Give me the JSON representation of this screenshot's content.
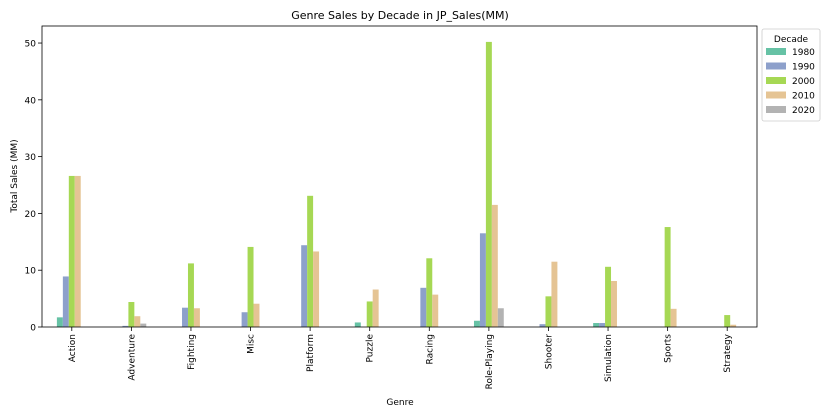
{
  "chart_data": {
    "type": "bar",
    "title": "Genre Sales by Decade in JP_Sales(MM)",
    "xlabel": "Genre",
    "ylabel": "Total Sales (MM)",
    "ylim": [
      0,
      53
    ],
    "yticks": [
      0,
      10,
      20,
      30,
      40,
      50
    ],
    "grid": false,
    "legend": {
      "title": "Decade",
      "placement": "outside top-right"
    },
    "categories": [
      "Action",
      "Adventure",
      "Fighting",
      "Misc",
      "Platform",
      "Puzzle",
      "Racing",
      "Role-Playing",
      "Shooter",
      "Simulation",
      "Sports",
      "Strategy"
    ],
    "series": [
      {
        "name": "1980",
        "color": "#66c2a5",
        "values": [
          1.7,
          0,
          0,
          0,
          0,
          0.8,
          0,
          1.1,
          0,
          0.7,
          0,
          0
        ]
      },
      {
        "name": "1990",
        "color": "#8da0cb",
        "values": [
          8.9,
          0.2,
          3.4,
          2.6,
          14.4,
          0,
          6.9,
          16.5,
          0.5,
          0.7,
          0,
          0
        ]
      },
      {
        "name": "2000",
        "color": "#a6d854",
        "values": [
          26.6,
          4.4,
          11.2,
          14.1,
          23.1,
          4.5,
          12.1,
          50.2,
          5.4,
          10.6,
          17.6,
          2.1
        ]
      },
      {
        "name": "2010",
        "color": "#e5c494",
        "values": [
          26.6,
          1.9,
          3.3,
          4.1,
          13.3,
          6.6,
          5.7,
          21.5,
          11.5,
          8.1,
          3.2,
          0.4
        ]
      },
      {
        "name": "2020",
        "color": "#b3b3b3",
        "values": [
          0,
          0.6,
          0,
          0,
          0,
          0,
          0,
          3.3,
          0,
          0,
          0,
          0
        ]
      }
    ]
  }
}
